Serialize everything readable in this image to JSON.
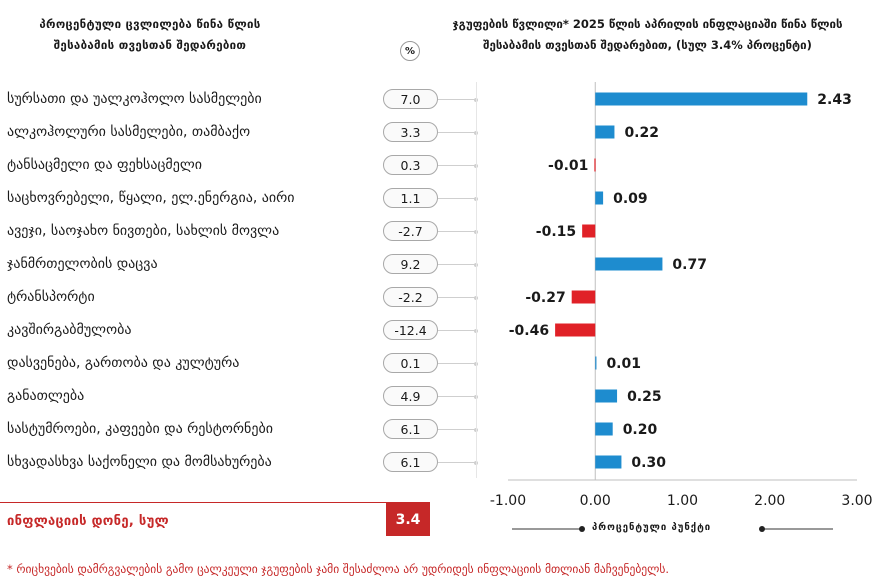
{
  "header": {
    "left_line1": "პროცენტული ცვლილება წინა წლის",
    "left_line2": "შესაბამის თვესთან შედარებით",
    "right_line1": "ჯგუფების წვლილი* 2025 წლის აპრილის ინფლაციაში წინა წლის",
    "right_line2": "შესაბამის თვესთან შედარებით, (სულ 3.4% პროცენტი)",
    "pct_badge": "%"
  },
  "rows": [
    {
      "label": "სურსათი და უალკოჰოლო სასმელები",
      "pct": "7.0"
    },
    {
      "label": "ალკოჰოლური სასმელები, თამბაქო",
      "pct": "3.3"
    },
    {
      "label": "ტანსაცმელი და ფეხსაცმელი",
      "pct": "0.3"
    },
    {
      "label": "საცხოვრებელი, წყალი, ელ.ენერგია, აირი",
      "pct": "1.1"
    },
    {
      "label": "ავეჯი, საოჯახო ნივთები, სახლის მოვლა",
      "pct": "-2.7"
    },
    {
      "label": "ჯანმრთელობის დაცვა",
      "pct": "9.2"
    },
    {
      "label": "ტრანსპორტი",
      "pct": "-2.2"
    },
    {
      "label": "კავშირგაბმულობა",
      "pct": "-12.4"
    },
    {
      "label": "დასვენება, გართობა და კულტურა",
      "pct": "0.1"
    },
    {
      "label": "განათლება",
      "pct": "4.9"
    },
    {
      "label": "სასტუმროები, კაფეები და რესტორნები",
      "pct": "6.1"
    },
    {
      "label": "სხვადასხვა საქონელი და მომსახურება",
      "pct": "6.1"
    }
  ],
  "total": {
    "label": "ინფლაციის დონე, სულ",
    "value": "3.4"
  },
  "footnote": "* რიცხვების დამრგვალების გამო ცალკეული ჯგუფების ჯამი შესაძლოა არ უდრიდეს ინფლაციის მთლიან მაჩვენებელს.",
  "colors": {
    "positive": "#1e8ccf",
    "negative": "#e02127",
    "accent": "#c62828"
  },
  "chart_data": {
    "type": "bar",
    "orientation": "horizontal",
    "xlabel": "პროცენტული პუნქტი",
    "xlim": [
      -1.0,
      3.0
    ],
    "x_ticks": [
      "-1.00",
      "0.00",
      "1.00",
      "2.00",
      "3.00"
    ],
    "categories": [
      "სურსათი და უალკოჰოლო სასმელები",
      "ალკოჰოლური სასმელები, თამბაქო",
      "ტანსაცმელი და ფეხსაცმელი",
      "საცხოვრებელი, წყალი, ელ.ენერგია, აირი",
      "ავეჯი, საოჯახო ნივთები, სახლის მოვლა",
      "ჯანმრთელობის დაცვა",
      "ტრანსპორტი",
      "კავშირგაბმულობა",
      "დასვენება, გართობა და კულტურა",
      "განათლება",
      "სასტუმროები, კაფეები და რესტორნები",
      "სხვადასხვა საქონელი და მომსახურება"
    ],
    "values": [
      2.43,
      0.22,
      -0.01,
      0.09,
      -0.15,
      0.77,
      -0.27,
      -0.46,
      0.01,
      0.25,
      0.2,
      0.3
    ],
    "value_labels": [
      "2.43",
      "0.22",
      "-0.01",
      "0.09",
      "-0.15",
      "0.77",
      "-0.27",
      "-0.46",
      "0.01",
      "0.25",
      "0.20",
      "0.30"
    ],
    "grid": false
  }
}
